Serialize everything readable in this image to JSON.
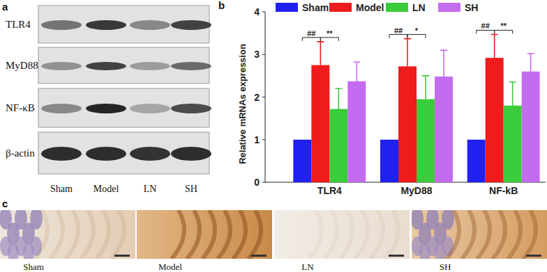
{
  "panel_labels": [
    "a",
    "b",
    "c"
  ],
  "blot": {
    "rows": [
      "TLR4",
      "MyD88",
      "NF-κB",
      "β-actin"
    ],
    "lanes": [
      "Sham",
      "Model",
      "LN",
      "SH"
    ]
  },
  "ihc": {
    "captions": [
      "Sham",
      "Model",
      "LN",
      "SH"
    ]
  },
  "chart_data": {
    "type": "bar",
    "y_label": "Relative mRNAs expression",
    "categories": [
      "TLR4",
      "MyD88",
      "NF-kB"
    ],
    "ylim": [
      0,
      4
    ],
    "yticks": [
      0,
      1,
      2,
      3,
      4
    ],
    "legend": "top",
    "series": [
      {
        "name": "Sham",
        "color": "#2020f0",
        "values": [
          1,
          1,
          1
        ]
      },
      {
        "name": "Model",
        "color": "#ee1c1c",
        "values": [
          2.75,
          2.72,
          2.92
        ],
        "errors": [
          0.55,
          0.65,
          0.55
        ]
      },
      {
        "name": "LN",
        "color": "#3acc3a",
        "values": [
          1.72,
          1.95,
          1.8
        ],
        "errors": [
          0.48,
          0.55,
          0.55
        ]
      },
      {
        "name": "SH",
        "color": "#c46cf0",
        "values": [
          2.37,
          2.48,
          2.6
        ],
        "errors": [
          0.45,
          0.62,
          0.42
        ]
      }
    ],
    "annotations": [
      {
        "text": "##",
        "category": "TLR4",
        "from": "Sham",
        "to": "Model"
      },
      {
        "text": "**",
        "category": "TLR4",
        "from": "Model",
        "to": "LN"
      },
      {
        "text": "##",
        "category": "MyD88",
        "from": "Sham",
        "to": "Model"
      },
      {
        "text": "*",
        "category": "MyD88",
        "from": "Model",
        "to": "LN"
      },
      {
        "text": "##",
        "category": "NF-kB",
        "from": "Sham",
        "to": "Model"
      },
      {
        "text": "**",
        "category": "NF-kB",
        "from": "Model",
        "to": "LN"
      }
    ]
  }
}
